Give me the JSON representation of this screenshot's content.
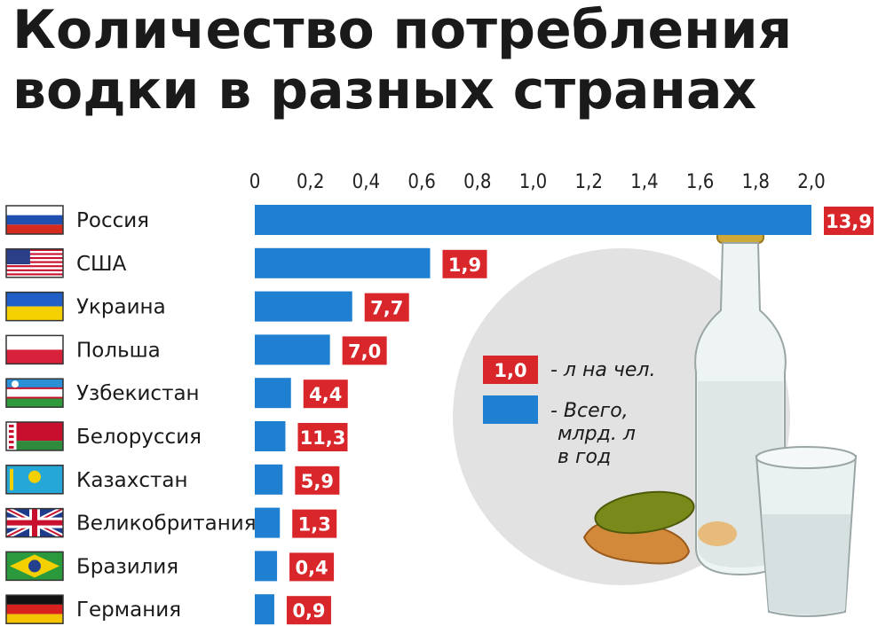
{
  "chart_data": {
    "type": "bar",
    "orientation": "horizontal",
    "title": "Количество потребления водки в разных странах",
    "x_ticks": [
      "0",
      "0,2",
      "0,4",
      "0,6",
      "0,8",
      "1,0",
      "1,2",
      "1,4",
      "1,6",
      "1,8",
      "2,0"
    ],
    "xlim": [
      0,
      2.0
    ],
    "grid": false,
    "categories": [
      "Россия",
      "США",
      "Украина",
      "Польша",
      "Узбекистан",
      "Белоруссия",
      "Казахстан",
      "Великобритания",
      "Бразилия",
      "Германия"
    ],
    "flags": [
      "russia-flag-icon",
      "usa-flag-icon",
      "ukraine-flag-icon",
      "poland-flag-icon",
      "uzbekistan-flag-icon",
      "belarus-flag-icon",
      "kazakhstan-flag-icon",
      "uk-flag-icon",
      "brazil-flag-icon",
      "germany-flag-icon"
    ],
    "series": [
      {
        "values": [
          2.0,
          0.63,
          0.35,
          0.27,
          0.13,
          0.11,
          0.1,
          0.09,
          0.08,
          0.07
        ]
      },
      {
        "values": [
          "13,9",
          "1,9",
          "7,7",
          "7,0",
          "4,4",
          "11,3",
          "5,9",
          "1,3",
          "0,4",
          "0,9"
        ]
      }
    ],
    "legend": [
      {
        "swatch": "1,0",
        "text": "- л на чел."
      },
      {
        "text_lines": [
          "- Всего,",
          "млрд. л",
          "в год"
        ]
      }
    ],
    "legend_position": "right",
    "colors": {
      "bar": "#1f7fd0",
      "label": "#d8262a",
      "circle": "#e2e2e2"
    }
  }
}
